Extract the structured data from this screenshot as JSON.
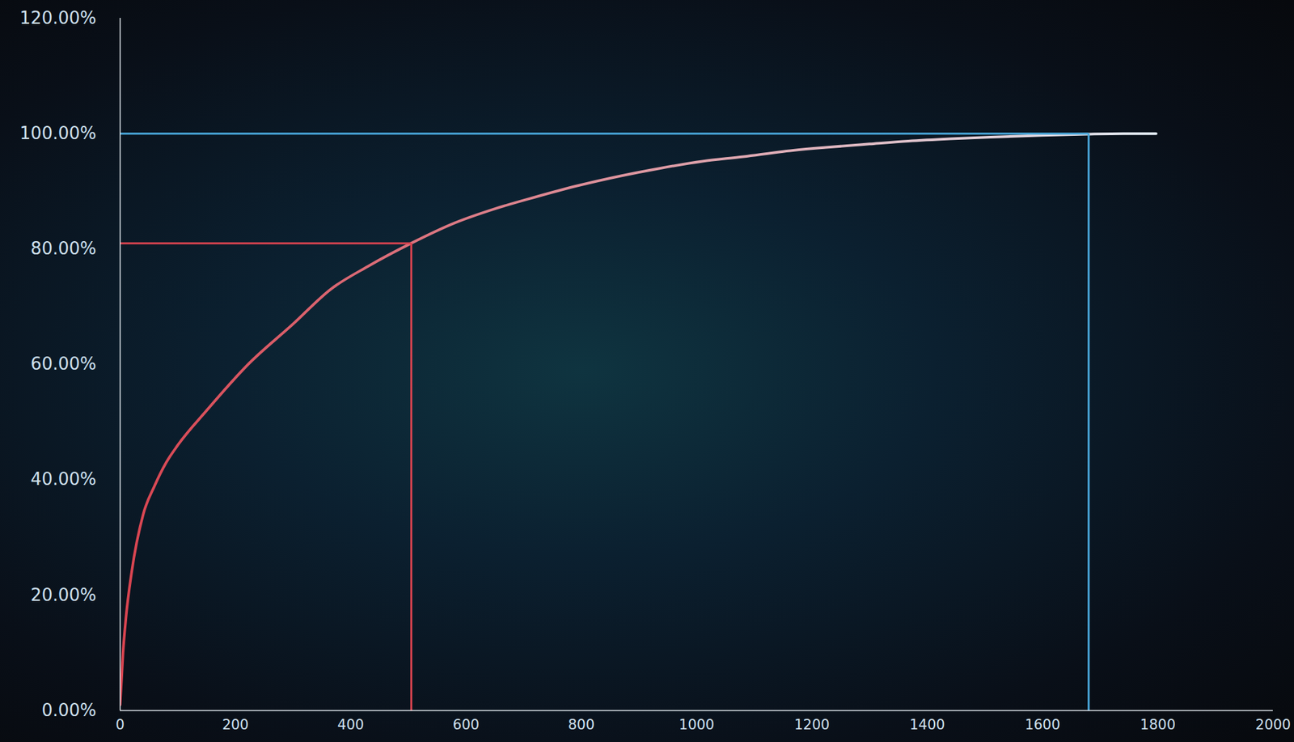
{
  "chart_data": {
    "type": "line",
    "x": [
      0,
      5,
      10,
      20,
      40,
      60,
      80,
      100,
      150,
      222,
      300,
      365,
      430,
      505,
      580,
      651,
      720,
      795,
      870,
      937,
      1010,
      1081,
      1150,
      1224,
      1300,
      1367,
      1440,
      1510,
      1600,
      1677,
      1740,
      1797
    ],
    "values": [
      1,
      10,
      16,
      24,
      34,
      39,
      43,
      46,
      52,
      60,
      67,
      73,
      77,
      81,
      84.5,
      87,
      89,
      91,
      92.7,
      94,
      95.2,
      96,
      96.9,
      97.6,
      98.2,
      98.7,
      99.1,
      99.4,
      99.7,
      99.9,
      100,
      100
    ],
    "colors": [
      "#d9434f",
      "#e3ecf4"
    ],
    "reference_lines": [
      {
        "x": 505,
        "y": 81,
        "color": "#d9434f"
      },
      {
        "x": 1680,
        "y": 100,
        "color": "#4aa8dc"
      }
    ],
    "xlim": [
      0,
      2000
    ],
    "xticks": [
      0,
      200,
      400,
      600,
      800,
      1000,
      1200,
      1400,
      1600,
      1800,
      2000
    ],
    "ylim": [
      0,
      120
    ],
    "yticks": [
      {
        "value": 0,
        "label": "0.00%"
      },
      {
        "value": 20,
        "label": "20.00%"
      },
      {
        "value": 40,
        "label": "40.00%"
      },
      {
        "value": 60,
        "label": "60.00%"
      },
      {
        "value": 80,
        "label": "80.00%"
      },
      {
        "value": 100,
        "label": "100.00%"
      },
      {
        "value": 120,
        "label": "120.00%"
      }
    ],
    "grid": false
  }
}
